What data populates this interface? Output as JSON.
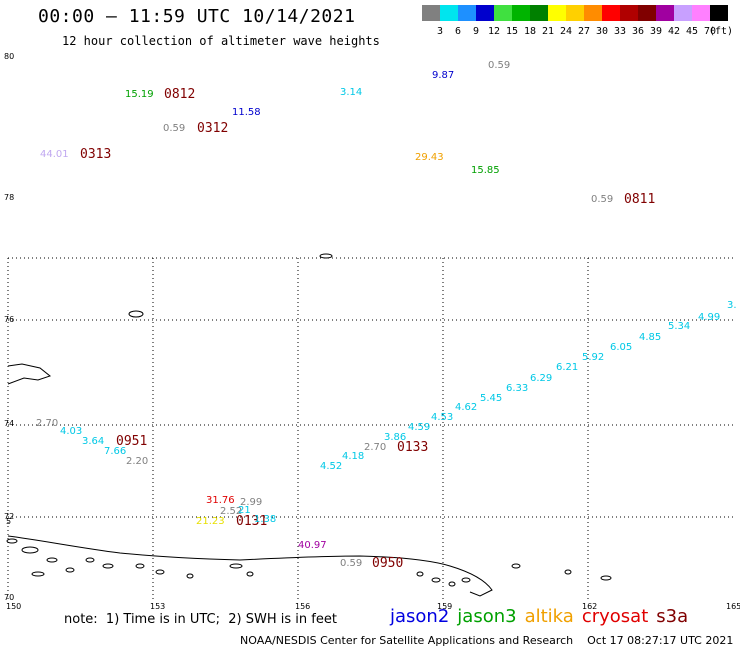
{
  "header": {
    "title": "00:00 – 11:59 UTC 10/14/2021",
    "subtitle": "12 hour collection of altimeter wave heights"
  },
  "legend": {
    "unit": "(ft)",
    "bins": [
      {
        "label": "3",
        "color": "#808080"
      },
      {
        "label": "6",
        "color": "#00e5ee"
      },
      {
        "label": "9",
        "color": "#1e90ff"
      },
      {
        "label": "12",
        "color": "#0000cd"
      },
      {
        "label": "15",
        "color": "#40e040"
      },
      {
        "label": "18",
        "color": "#00b400"
      },
      {
        "label": "21",
        "color": "#008000"
      },
      {
        "label": "24",
        "color": "#ffff00"
      },
      {
        "label": "27",
        "color": "#ffd000"
      },
      {
        "label": "30",
        "color": "#ff8c00"
      },
      {
        "label": "33",
        "color": "#ff0000"
      },
      {
        "label": "36",
        "color": "#b00000"
      },
      {
        "label": "39",
        "color": "#800000"
      },
      {
        "label": "42",
        "color": "#a000a0"
      },
      {
        "label": "45",
        "color": "#c8a0ff"
      },
      {
        "label": "70",
        "color": "#ff80ff"
      },
      {
        "label": "",
        "color": "#000000"
      }
    ]
  },
  "map": {
    "x_ticks": [
      "150",
      "153",
      "156",
      "159",
      "162",
      "165"
    ],
    "y_ticks": [
      "80",
      "78",
      "76",
      "74",
      "72",
      "70"
    ],
    "extra_tick": "5"
  },
  "colors": {
    "gray": "#808080",
    "cyan": "#00c8e6",
    "blue": "#0000cd",
    "green": "#00a000",
    "yellow": "#e8e000",
    "orange": "#f0a000",
    "red": "#e00000",
    "maroon": "#800000",
    "purple": "#a000a0",
    "lavender": "#c0a8f0"
  },
  "observations": [
    {
      "text": "15.19",
      "color": "green"
    },
    {
      "text": "0812",
      "color": "maroon",
      "time": true
    },
    {
      "text": "11.58",
      "color": "blue"
    },
    {
      "text": "0.59",
      "color": "gray"
    },
    {
      "text": "0312",
      "color": "maroon",
      "time": true
    },
    {
      "text": "44.01",
      "color": "lavender"
    },
    {
      "text": "0313",
      "color": "maroon",
      "time": true
    },
    {
      "text": "3.14",
      "color": "cyan"
    },
    {
      "text": "9.87",
      "color": "blue"
    },
    {
      "text": "0.59",
      "color": "gray"
    },
    {
      "text": "29.43",
      "color": "orange"
    },
    {
      "text": "15.85",
      "color": "green"
    },
    {
      "text": "0.59",
      "color": "gray"
    },
    {
      "text": "0811",
      "color": "maroon",
      "time": true
    },
    {
      "text": "3.",
      "color": "cyan"
    },
    {
      "text": "4.99",
      "color": "cyan"
    },
    {
      "text": "5.34",
      "color": "cyan"
    },
    {
      "text": "4.85",
      "color": "cyan"
    },
    {
      "text": "6.05",
      "color": "cyan"
    },
    {
      "text": "5.92",
      "color": "cyan"
    },
    {
      "text": "6.21",
      "color": "cyan"
    },
    {
      "text": "6.29",
      "color": "cyan"
    },
    {
      "text": "6.33",
      "color": "cyan"
    },
    {
      "text": "5.45",
      "color": "cyan"
    },
    {
      "text": "4.62",
      "color": "cyan"
    },
    {
      "text": "4.53",
      "color": "cyan"
    },
    {
      "text": "4.59",
      "color": "cyan"
    },
    {
      "text": "3.86",
      "color": "cyan"
    },
    {
      "text": "2.70",
      "color": "gray"
    },
    {
      "text": "0133",
      "color": "maroon",
      "time": true
    },
    {
      "text": "4.18",
      "color": "cyan"
    },
    {
      "text": "4.52",
      "color": "cyan"
    },
    {
      "text": "2.70",
      "color": "gray"
    },
    {
      "text": "4.03",
      "color": "cyan"
    },
    {
      "text": "3.64",
      "color": "cyan"
    },
    {
      "text": "0951",
      "color": "maroon",
      "time": true
    },
    {
      "text": "7.66",
      "color": "cyan"
    },
    {
      "text": "2.20",
      "color": "gray"
    },
    {
      "text": "31.76",
      "color": "red"
    },
    {
      "text": "2.99",
      "color": "gray"
    },
    {
      "text": "2.52",
      "color": "gray"
    },
    {
      "text": "21",
      "color": "cyan"
    },
    {
      "text": "21.23",
      "color": "yellow"
    },
    {
      "text": "0131",
      "color": "maroon",
      "time": true
    },
    {
      "text": "1.38",
      "color": "cyan"
    },
    {
      "text": "40.97",
      "color": "purple"
    },
    {
      "text": "0.59",
      "color": "gray"
    },
    {
      "text": "0950",
      "color": "maroon",
      "time": true
    }
  ],
  "footer": {
    "note": "note:  1) Time is in UTC;  2) SWH is in feet",
    "satellites": [
      {
        "name": "jason2",
        "color": "#0000e0"
      },
      {
        "name": "jason3",
        "color": "#00a000"
      },
      {
        "name": "altika",
        "color": "#f0a000"
      },
      {
        "name": "cryosat",
        "color": "#e00000"
      },
      {
        "name": "s3a",
        "color": "#800000"
      }
    ],
    "credit": "NOAA/NESDIS Center for Satellite Applications and Research    Oct 17 08:27:17 UTC 2021"
  }
}
